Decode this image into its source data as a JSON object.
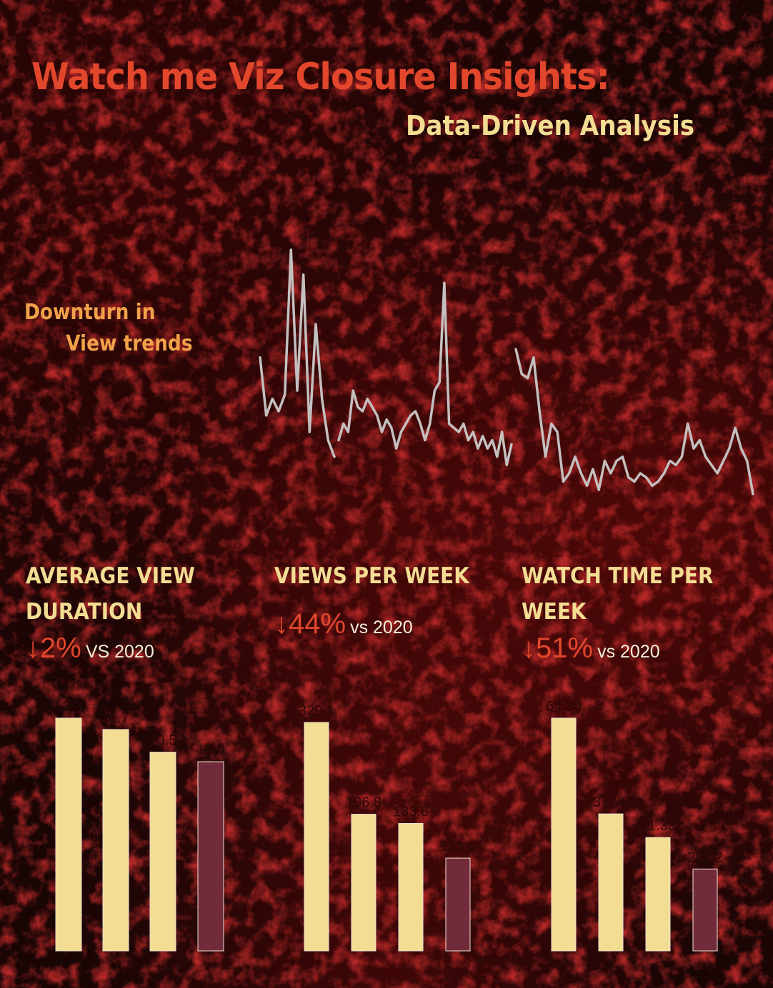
{
  "header": {
    "title": "Watch me Viz Closure Insights:",
    "subtitle": "Data-Driven Analysis"
  },
  "trend": {
    "label_line1": "Downturn in",
    "label_line2": "View trends"
  },
  "colors": {
    "title": "#e2472c",
    "subtitle": "#f2dd93",
    "trend_label": "#f0a24a",
    "line": "#c4c0c0",
    "bar_prior": "#f2dd93",
    "bar_current": "#722b3a",
    "kpi": "#e2472c",
    "vs_text": "#f3ecd6"
  },
  "panels": [
    {
      "title": "Average View Duration",
      "arrow": "↓",
      "pct": "2%",
      "vs": "VS 2020"
    },
    {
      "title": "Views per week",
      "arrow": "↓",
      "pct": "44%",
      "vs": "vs 2020"
    },
    {
      "title": "Watch Time per week",
      "arrow": "↓",
      "pct": "51%",
      "vs": "vs 2020"
    }
  ],
  "chart_data": [
    {
      "type": "line",
      "title": "",
      "y_scale": "unlabeled",
      "segments": [
        [
          240,
          170,
          190,
          175,
          195,
          370,
          200,
          340,
          150,
          280,
          190,
          140,
          120
        ],
        [
          140,
          160,
          150,
          200,
          180,
          175,
          190,
          180,
          170,
          150,
          165,
          155,
          130,
          150,
          160,
          170,
          175,
          160,
          140,
          160,
          200,
          210,
          330,
          160,
          155,
          150,
          160,
          140,
          150,
          130,
          145,
          130,
          140,
          120,
          150,
          110,
          135
        ],
        [
          250,
          220,
          215,
          240,
          175,
          120,
          160,
          150,
          90,
          100,
          120,
          100,
          85,
          105,
          80,
          115,
          100,
          115,
          120,
          95,
          90,
          100,
          95,
          85,
          90,
          100,
          115,
          110,
          120,
          160,
          130,
          140,
          120,
          110,
          100,
          115,
          130,
          155,
          130,
          115,
          75
        ]
      ]
    },
    {
      "type": "bar",
      "title": "Average View Duration",
      "categories": [
        "",
        "",
        "",
        ""
      ],
      "values": [
        12.3,
        11.7,
        10.5,
        10.0
      ],
      "labels": [
        "12.3",
        "11.7",
        "10.5",
        "10.0"
      ],
      "ylim": [
        0,
        12.3
      ],
      "highlight_last": true
    },
    {
      "type": "bar",
      "title": "Views per week",
      "categories": [
        "",
        "",
        "",
        ""
      ],
      "values": [
        329.1,
        196.8,
        183.6,
        133.6
      ],
      "labels": [
        "329.1",
        "196.8",
        "183.6",
        "133.6"
      ],
      "ylim": [
        0,
        329.1
      ],
      "highlight_last": true
    },
    {
      "type": "bar",
      "title": "Watch Time per week",
      "categories": [
        "",
        "",
        "",
        ""
      ],
      "values": [
        64.3,
        37.86,
        31.33,
        22.62
      ],
      "labels": [
        "64.30",
        "37.86",
        "31.33",
        "22.62"
      ],
      "ylim": [
        0,
        64.3
      ],
      "highlight_last": true
    }
  ]
}
